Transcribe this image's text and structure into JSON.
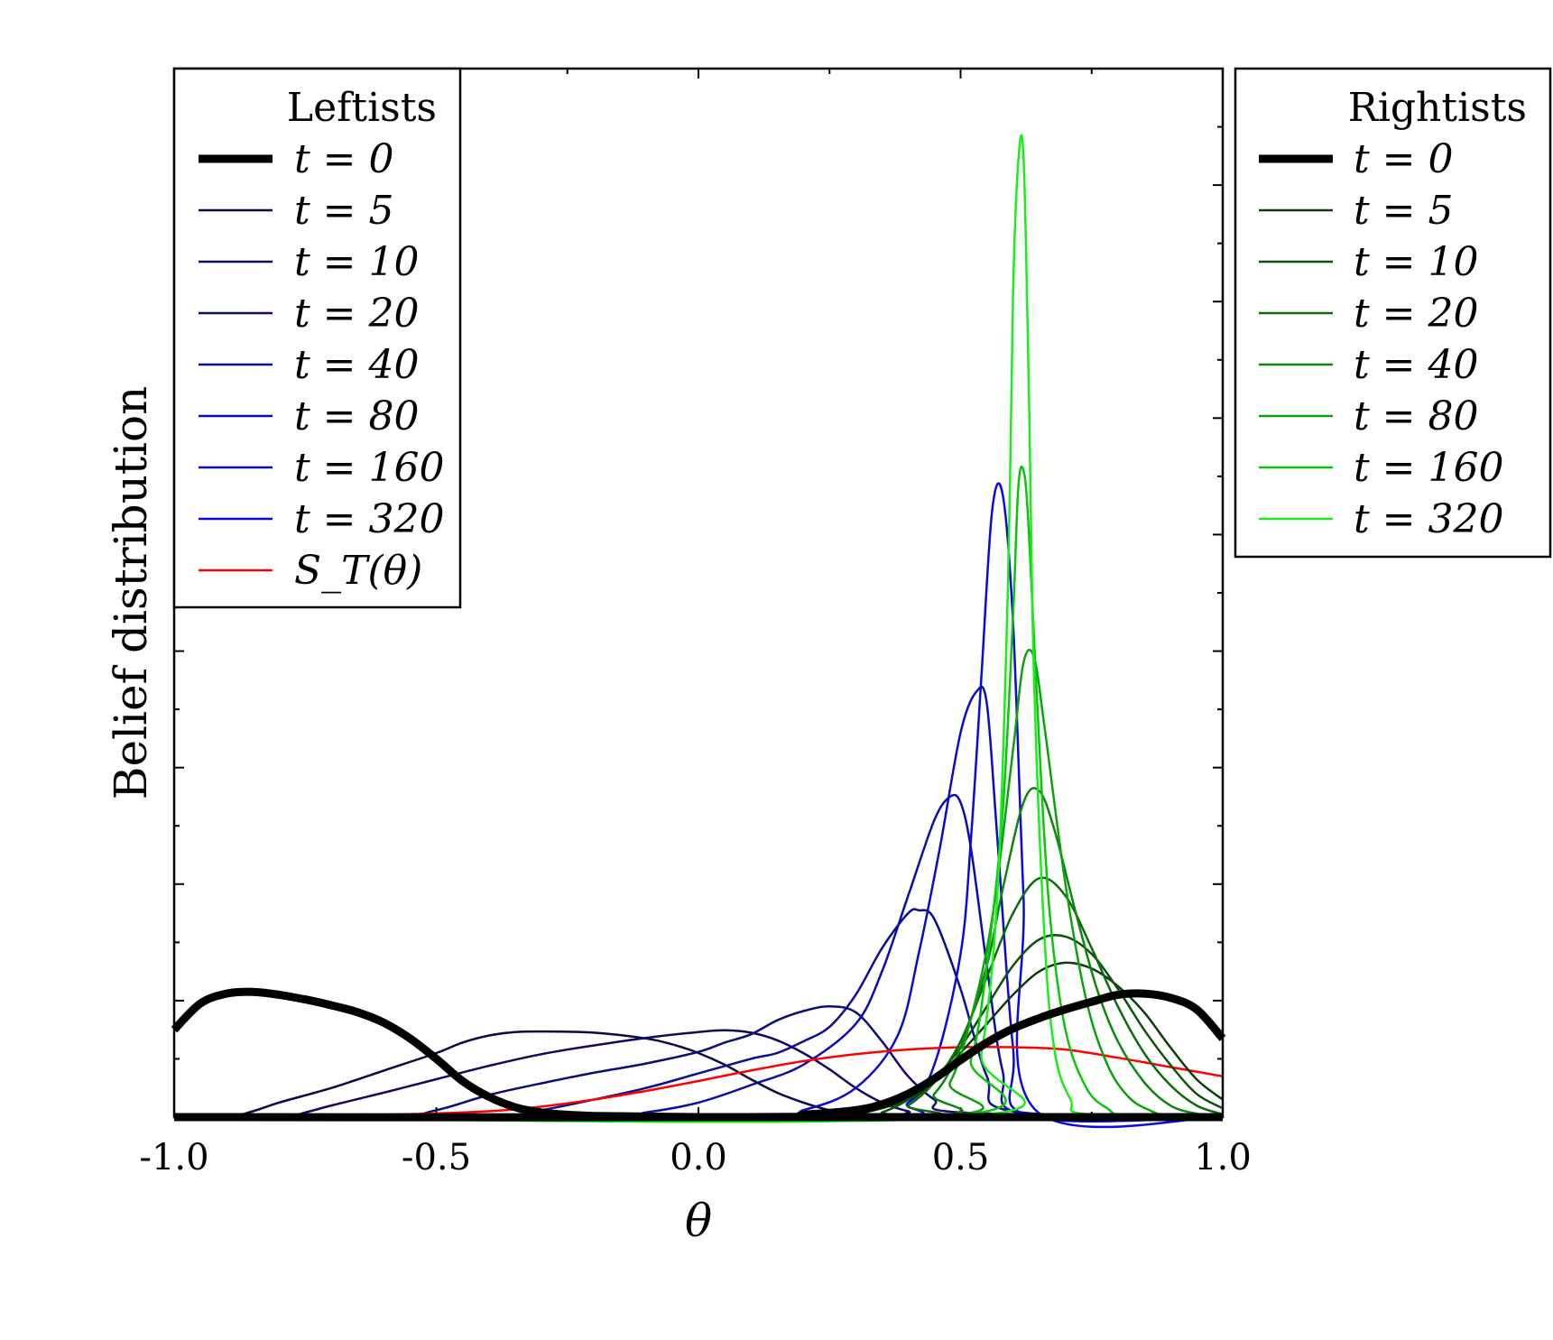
{
  "chart_data": {
    "type": "line",
    "title": "",
    "xlabel": "θ",
    "ylabel": "Belief distribution",
    "xlim": [
      -1.0,
      1.0
    ],
    "ylim": [
      0,
      18
    ],
    "x_ticks": [
      "-1.0",
      "-0.5",
      "0.0",
      "0.5",
      "1.0"
    ],
    "x_tick_values": [
      -1.0,
      -0.5,
      0.0,
      0.5,
      1.0
    ],
    "y_major_ticks": [
      2,
      4,
      6,
      8,
      10,
      12,
      14,
      16,
      18
    ],
    "y_minor_ticks": [
      1,
      3,
      5,
      7,
      9,
      11,
      13,
      15,
      17
    ],
    "y_tick_labels_shown": false,
    "legends": [
      {
        "title": "Leftists",
        "placement": "upper-left inside",
        "entries": [
          {
            "label": "t = 0",
            "series": "L0"
          },
          {
            "label": "t = 5",
            "series": "L5"
          },
          {
            "label": "t = 10",
            "series": "L10"
          },
          {
            "label": "t = 20",
            "series": "L20"
          },
          {
            "label": "t = 40",
            "series": "L40"
          },
          {
            "label": "t = 80",
            "series": "L80"
          },
          {
            "label": "t = 160",
            "series": "L160"
          },
          {
            "label": "t = 320",
            "series": "L320"
          },
          {
            "label": "S_T(θ)",
            "series": "ST"
          }
        ]
      },
      {
        "title": "Rightists",
        "placement": "right outside",
        "entries": [
          {
            "label": "t = 0",
            "series": "R0"
          },
          {
            "label": "t = 5",
            "series": "R5"
          },
          {
            "label": "t = 10",
            "series": "R10"
          },
          {
            "label": "t = 20",
            "series": "R20"
          },
          {
            "label": "t = 40",
            "series": "R40"
          },
          {
            "label": "t = 80",
            "series": "R80"
          },
          {
            "label": "t = 160",
            "series": "R160"
          },
          {
            "label": "t = 320",
            "series": "R320"
          }
        ]
      }
    ],
    "series": [
      {
        "id": "L0",
        "name": "Leftists t = 0",
        "color": "#000000",
        "width": 9,
        "x": [
          -1.0,
          -0.95,
          -0.9,
          -0.85,
          -0.8,
          -0.75,
          -0.7,
          -0.65,
          -0.6,
          -0.55,
          -0.5,
          -0.45,
          -0.4,
          -0.35,
          -0.3,
          -0.25,
          -0.2,
          -0.1,
          0.0,
          0.1,
          1.0
        ],
        "y": [
          1.5,
          1.95,
          2.12,
          2.15,
          2.1,
          2.02,
          1.92,
          1.8,
          1.62,
          1.35,
          1.0,
          0.62,
          0.35,
          0.17,
          0.08,
          0.04,
          0.02,
          0.01,
          0.0,
          0.0,
          0.0
        ]
      },
      {
        "id": "L5",
        "name": "Leftists t = 5",
        "color": "#0a0a44",
        "width": 2.5,
        "x": [
          -1.0,
          -0.9,
          -0.85,
          -0.8,
          -0.7,
          -0.6,
          -0.5,
          -0.45,
          -0.4,
          -0.35,
          -0.3,
          -0.2,
          -0.1,
          -0.05,
          0.0,
          0.05,
          0.1,
          0.15,
          0.2,
          0.25,
          0.3,
          0.35,
          0.4,
          1.0
        ],
        "y": [
          0.0,
          0.0,
          0.1,
          0.25,
          0.5,
          0.8,
          1.1,
          1.28,
          1.4,
          1.46,
          1.47,
          1.45,
          1.35,
          1.25,
          1.1,
          0.9,
          0.65,
          0.42,
          0.25,
          0.12,
          0.05,
          0.02,
          0.0,
          0.0
        ]
      },
      {
        "id": "L10",
        "name": "Leftists t = 10",
        "color": "#0c0c5c",
        "width": 2.5,
        "x": [
          -1.0,
          -0.8,
          -0.75,
          -0.7,
          -0.6,
          -0.5,
          -0.4,
          -0.3,
          -0.2,
          -0.1,
          0.0,
          0.05,
          0.1,
          0.15,
          0.2,
          0.25,
          0.3,
          0.35,
          0.4,
          0.45,
          1.0
        ],
        "y": [
          0.0,
          0.0,
          0.08,
          0.2,
          0.42,
          0.65,
          0.88,
          1.08,
          1.23,
          1.36,
          1.46,
          1.49,
          1.45,
          1.32,
          1.1,
          0.82,
          0.5,
          0.25,
          0.1,
          0.03,
          0.0
        ]
      },
      {
        "id": "L20",
        "name": "Leftists t = 20",
        "color": "#0d0d78",
        "width": 2.5,
        "x": [
          -1.0,
          -0.6,
          -0.5,
          -0.4,
          -0.3,
          -0.2,
          -0.1,
          0.0,
          0.05,
          0.1,
          0.15,
          0.2,
          0.25,
          0.3,
          0.35,
          0.4,
          0.45,
          0.5,
          1.0
        ],
        "y": [
          0.0,
          0.0,
          0.12,
          0.38,
          0.58,
          0.76,
          0.92,
          1.12,
          1.28,
          1.42,
          1.66,
          1.82,
          1.9,
          1.8,
          1.3,
          0.7,
          0.3,
          0.08,
          0.0
        ]
      },
      {
        "id": "L40",
        "name": "Leftists t = 40",
        "color": "#0d0d92",
        "width": 2.5,
        "x": [
          -1.0,
          -0.4,
          -0.3,
          -0.2,
          -0.1,
          0.0,
          0.1,
          0.15,
          0.2,
          0.25,
          0.3,
          0.35,
          0.4,
          0.42,
          0.45,
          0.5,
          0.55,
          0.6,
          1.0
        ],
        "y": [
          0.0,
          0.0,
          0.12,
          0.3,
          0.5,
          0.75,
          1.0,
          1.1,
          1.3,
          1.55,
          2.1,
          2.9,
          3.5,
          3.55,
          3.4,
          2.2,
          0.7,
          0.1,
          0.0
        ]
      },
      {
        "id": "L80",
        "name": "Leftists t = 80",
        "color": "#0c0cad",
        "width": 2.5,
        "x": [
          -1.0,
          -0.2,
          -0.1,
          0.0,
          0.1,
          0.2,
          0.3,
          0.35,
          0.4,
          0.45,
          0.48,
          0.5,
          0.52,
          0.55,
          0.58,
          0.62,
          1.0
        ],
        "y": [
          0.0,
          0.0,
          0.08,
          0.25,
          0.55,
          0.9,
          1.6,
          2.5,
          3.8,
          5.1,
          5.5,
          5.4,
          4.6,
          2.6,
          0.8,
          0.05,
          0.0
        ]
      },
      {
        "id": "L160",
        "name": "Leftists t = 160",
        "color": "#0b0bc7",
        "width": 2.5,
        "x": [
          -1.0,
          0.1,
          0.2,
          0.3,
          0.38,
          0.42,
          0.46,
          0.5,
          0.53,
          0.55,
          0.57,
          0.6,
          0.63,
          1.0
        ],
        "y": [
          0.0,
          0.0,
          0.12,
          0.5,
          1.4,
          2.8,
          4.6,
          6.6,
          7.3,
          7.1,
          4.8,
          1.2,
          0.02,
          0.0
        ]
      },
      {
        "id": "L320",
        "name": "Leftists t = 320",
        "color": "#0a0ae0",
        "width": 2.5,
        "x": [
          -1.0,
          0.3,
          0.4,
          0.45,
          0.5,
          0.52,
          0.54,
          0.56,
          0.58,
          0.6,
          0.62,
          0.64,
          1.0
        ],
        "y": [
          0.0,
          0.0,
          0.25,
          0.9,
          2.8,
          4.8,
          7.6,
          10.4,
          10.7,
          8.5,
          3.8,
          0.15,
          0.0
        ]
      },
      {
        "id": "ST",
        "name": "S_T(θ)",
        "color": "#ff0000",
        "width": 2.5,
        "x": [
          -1.0,
          -0.8,
          -0.6,
          -0.4,
          -0.3,
          -0.2,
          -0.1,
          0.0,
          0.1,
          0.2,
          0.3,
          0.4,
          0.5,
          0.6,
          0.7,
          0.8,
          0.9,
          1.0
        ],
        "y": [
          0.02,
          0.02,
          0.04,
          0.1,
          0.18,
          0.3,
          0.45,
          0.62,
          0.8,
          0.96,
          1.08,
          1.16,
          1.2,
          1.2,
          1.16,
          1.02,
          0.86,
          0.7
        ]
      },
      {
        "id": "R0",
        "name": "Rightists t = 0",
        "color": "#000000",
        "width": 9,
        "x": [
          -1.0,
          0.1,
          0.2,
          0.3,
          0.35,
          0.4,
          0.45,
          0.5,
          0.55,
          0.6,
          0.65,
          0.7,
          0.75,
          0.8,
          0.85,
          0.9,
          0.95,
          1.0
        ],
        "y": [
          0.0,
          0.0,
          0.04,
          0.12,
          0.22,
          0.4,
          0.66,
          0.98,
          1.28,
          1.52,
          1.7,
          1.85,
          1.98,
          2.1,
          2.12,
          2.05,
          1.85,
          1.35
        ]
      },
      {
        "id": "R5",
        "name": "Rightists t = 5",
        "color": "#0d3d0d",
        "width": 2.5,
        "x": [
          -1.0,
          0.2,
          0.3,
          0.4,
          0.45,
          0.5,
          0.55,
          0.6,
          0.65,
          0.7,
          0.75,
          0.8,
          0.85,
          0.9,
          0.95,
          1.0
        ],
        "y": [
          0.0,
          0.0,
          0.05,
          0.3,
          0.6,
          1.1,
          1.6,
          2.1,
          2.5,
          2.65,
          2.55,
          2.25,
          1.8,
          1.2,
          0.65,
          0.3
        ]
      },
      {
        "id": "R10",
        "name": "Rightists t = 10",
        "color": "#0d520d",
        "width": 2.5,
        "x": [
          -1.0,
          0.3,
          0.35,
          0.4,
          0.45,
          0.5,
          0.55,
          0.6,
          0.65,
          0.7,
          0.75,
          0.8,
          0.85,
          0.9,
          0.95,
          1.0
        ],
        "y": [
          0.0,
          0.0,
          0.08,
          0.3,
          0.65,
          1.2,
          1.9,
          2.6,
          3.05,
          3.1,
          2.8,
          2.2,
          1.5,
          0.9,
          0.4,
          0.15
        ]
      },
      {
        "id": "R20",
        "name": "Rightists t = 20",
        "color": "#0d6b0d",
        "width": 2.5,
        "x": [
          -1.0,
          0.35,
          0.4,
          0.45,
          0.5,
          0.55,
          0.6,
          0.65,
          0.7,
          0.75,
          0.8,
          0.85,
          0.9,
          0.95,
          1.0
        ],
        "y": [
          0.0,
          0.0,
          0.2,
          0.6,
          1.3,
          2.4,
          3.5,
          4.1,
          3.8,
          2.9,
          1.9,
          1.1,
          0.55,
          0.2,
          0.05
        ]
      },
      {
        "id": "R40",
        "name": "Rightists t = 40",
        "color": "#0d860d",
        "width": 2.5,
        "x": [
          -1.0,
          0.38,
          0.45,
          0.5,
          0.55,
          0.58,
          0.62,
          0.65,
          0.68,
          0.72,
          0.76,
          0.8,
          0.85,
          0.9,
          0.95,
          1.0
        ],
        "y": [
          0.0,
          0.0,
          0.4,
          1.2,
          2.6,
          3.9,
          5.4,
          5.6,
          4.9,
          3.5,
          2.2,
          1.3,
          0.6,
          0.2,
          0.06,
          0.0
        ]
      },
      {
        "id": "R80",
        "name": "Rightists t = 80",
        "color": "#0da10d",
        "width": 2.5,
        "x": [
          -1.0,
          0.42,
          0.48,
          0.52,
          0.56,
          0.6,
          0.62,
          0.64,
          0.66,
          0.7,
          0.74,
          0.78,
          0.82,
          0.86,
          0.9,
          1.0
        ],
        "y": [
          0.0,
          0.0,
          0.6,
          1.7,
          3.4,
          6.3,
          7.8,
          7.9,
          6.7,
          4.0,
          2.0,
          0.9,
          0.35,
          0.12,
          0.02,
          0.0
        ]
      },
      {
        "id": "R160",
        "name": "Rightists t = 160",
        "color": "#0dc40d",
        "width": 2.5,
        "x": [
          -1.0,
          0.46,
          0.52,
          0.55,
          0.58,
          0.6,
          0.61,
          0.62,
          0.63,
          0.65,
          0.67,
          0.7,
          0.74,
          0.78,
          0.82,
          1.0
        ],
        "y": [
          0.0,
          0.0,
          1.0,
          2.6,
          5.2,
          8.6,
          10.8,
          11.1,
          10.1,
          6.4,
          3.5,
          1.5,
          0.5,
          0.15,
          0.02,
          0.0
        ]
      },
      {
        "id": "R320",
        "name": "Rightists t = 320",
        "color": "#1aee1a",
        "width": 2.5,
        "x": [
          -1.0,
          0.5,
          0.54,
          0.57,
          0.59,
          0.6,
          0.61,
          0.62,
          0.63,
          0.64,
          0.66,
          0.68,
          0.71,
          0.74,
          1.0
        ],
        "y": [
          0.0,
          0.0,
          1.1,
          3.8,
          9.0,
          14.1,
          16.4,
          16.5,
          12.6,
          7.6,
          3.1,
          1.1,
          0.3,
          0.05,
          0.0
        ]
      }
    ]
  }
}
